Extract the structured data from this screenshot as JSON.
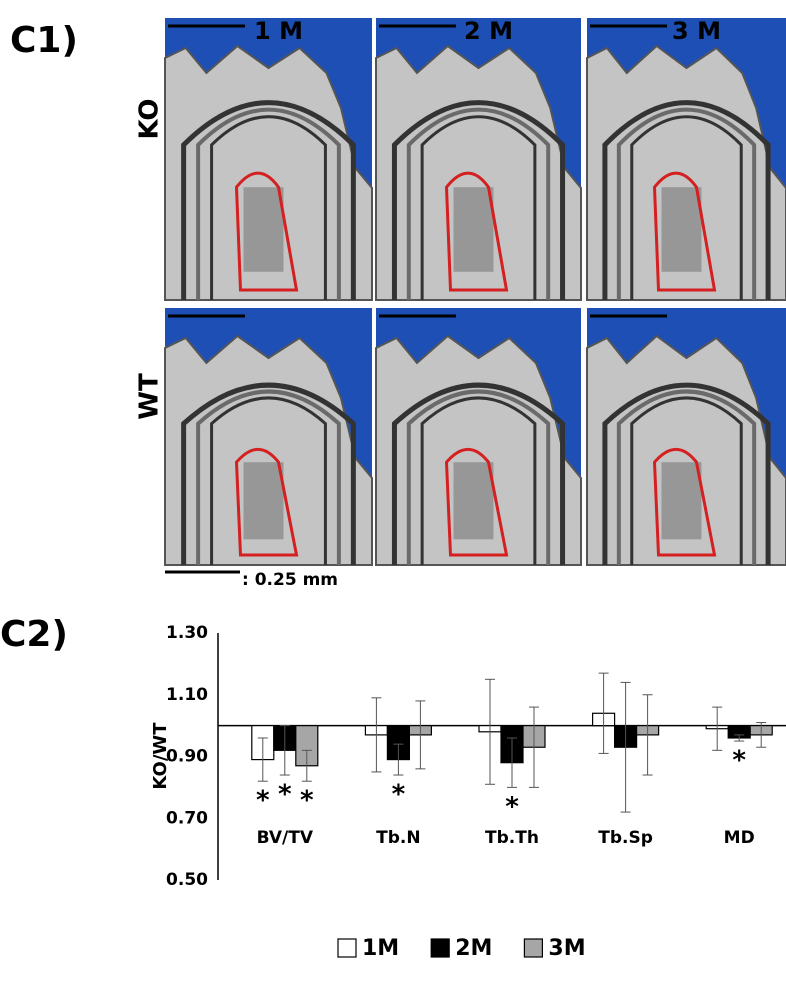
{
  "panel_c1": {
    "label": "C1)",
    "columns": [
      "1 M",
      "2 M",
      "3 M"
    ],
    "rows": [
      "KO",
      "WT"
    ],
    "scale_label": ": 0.25 mm"
  },
  "chart_data": {
    "type": "bar",
    "label": "C2)",
    "y_label": "KO/WT",
    "categories": [
      "BV/TV",
      "Tb.N",
      "Tb.Th",
      "Tb.Sp",
      "MD"
    ],
    "baseline": 1,
    "ylim": [
      0.5,
      1.3
    ],
    "yticks": [
      {
        "value": 0.5,
        "label": "0.50"
      },
      {
        "value": 0.7,
        "label": "0.70"
      },
      {
        "value": 0.9,
        "label": "0.90"
      },
      {
        "value": 1.1,
        "label": "1.10"
      },
      {
        "value": 1.3,
        "label": "1.30"
      }
    ],
    "significance_label": "*",
    "series": [
      {
        "name": "1M",
        "color": "#ffffff",
        "values": [
          0.89,
          0.97,
          0.98,
          1.04,
          0.99
        ],
        "errors": [
          0.07,
          0.12,
          0.17,
          0.13,
          0.07
        ],
        "significant": [
          true,
          false,
          false,
          false,
          false
        ]
      },
      {
        "name": "2M",
        "color": "#000000",
        "values": [
          0.92,
          0.89,
          0.88,
          0.93,
          0.96
        ],
        "errors": [
          0.08,
          0.05,
          0.08,
          0.21,
          0.01
        ],
        "significant": [
          true,
          true,
          true,
          false,
          true
        ]
      },
      {
        "name": "3M",
        "color": "#a6a6a6",
        "values": [
          0.87,
          0.97,
          0.93,
          0.97,
          0.97
        ],
        "errors": [
          0.05,
          0.11,
          0.13,
          0.13,
          0.04
        ],
        "significant": [
          true,
          false,
          false,
          false,
          false
        ]
      }
    ]
  }
}
